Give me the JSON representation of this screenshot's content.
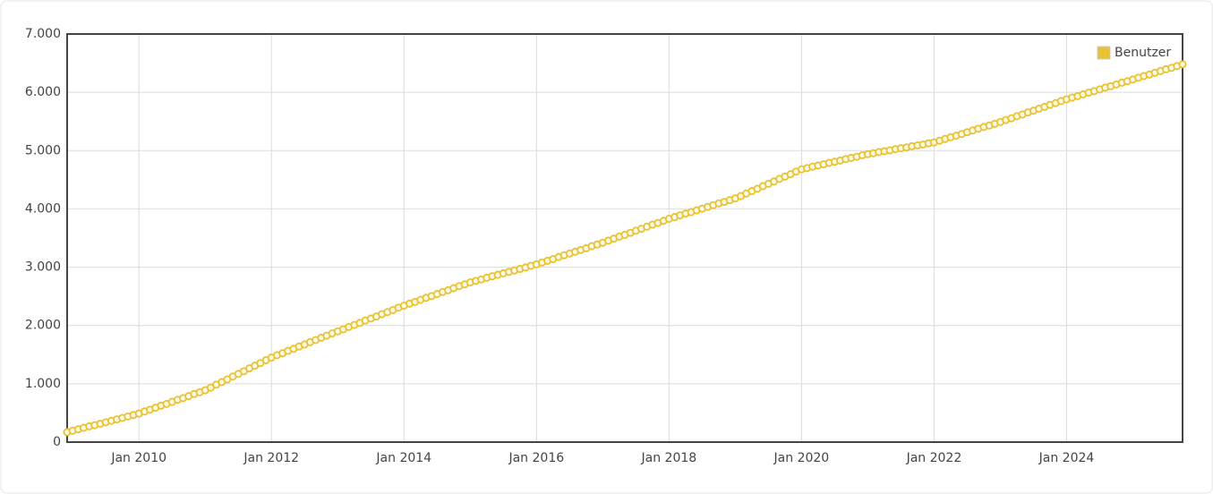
{
  "chart_data": {
    "type": "line",
    "x": [
      "2008-12",
      "2009-01",
      "2009-02",
      "2009-03",
      "2009-04",
      "2009-05",
      "2009-06",
      "2009-07",
      "2009-08",
      "2009-09",
      "2009-10",
      "2009-11",
      "2009-12",
      "2010-01",
      "2010-02",
      "2010-03",
      "2010-04",
      "2010-05",
      "2010-06",
      "2010-07",
      "2010-08",
      "2010-09",
      "2010-10",
      "2010-11",
      "2010-12",
      "2011-01",
      "2011-02",
      "2011-03",
      "2011-04",
      "2011-05",
      "2011-06",
      "2011-07",
      "2011-08",
      "2011-09",
      "2011-10",
      "2011-11",
      "2011-12",
      "2012-01",
      "2012-02",
      "2012-03",
      "2012-04",
      "2012-05",
      "2012-06",
      "2012-07",
      "2012-08",
      "2012-09",
      "2012-10",
      "2012-11",
      "2012-12",
      "2013-01",
      "2013-02",
      "2013-03",
      "2013-04",
      "2013-05",
      "2013-06",
      "2013-07",
      "2013-08",
      "2013-09",
      "2013-10",
      "2013-11",
      "2013-12",
      "2014-01",
      "2014-02",
      "2014-03",
      "2014-04",
      "2014-05",
      "2014-06",
      "2014-07",
      "2014-08",
      "2014-09",
      "2014-10",
      "2014-11",
      "2014-12",
      "2015-01",
      "2015-02",
      "2015-03",
      "2015-04",
      "2015-05",
      "2015-06",
      "2015-07",
      "2015-08",
      "2015-09",
      "2015-10",
      "2015-11",
      "2015-12",
      "2016-01",
      "2016-02",
      "2016-03",
      "2016-04",
      "2016-05",
      "2016-06",
      "2016-07",
      "2016-08",
      "2016-09",
      "2016-10",
      "2016-11",
      "2016-12",
      "2017-01",
      "2017-02",
      "2017-03",
      "2017-04",
      "2017-05",
      "2017-06",
      "2017-07",
      "2017-08",
      "2017-09",
      "2017-10",
      "2017-11",
      "2017-12",
      "2018-01",
      "2018-02",
      "2018-03",
      "2018-04",
      "2018-05",
      "2018-06",
      "2018-07",
      "2018-08",
      "2018-09",
      "2018-10",
      "2018-11",
      "2018-12",
      "2019-01",
      "2019-02",
      "2019-03",
      "2019-04",
      "2019-05",
      "2019-06",
      "2019-07",
      "2019-08",
      "2019-09",
      "2019-10",
      "2019-11",
      "2019-12",
      "2020-01",
      "2020-02",
      "2020-03",
      "2020-04",
      "2020-05",
      "2020-06",
      "2020-07",
      "2020-08",
      "2020-09",
      "2020-10",
      "2020-11",
      "2020-12",
      "2021-01",
      "2021-02",
      "2021-03",
      "2021-04",
      "2021-05",
      "2021-06",
      "2021-07",
      "2021-08",
      "2021-09",
      "2021-10",
      "2021-11",
      "2021-12",
      "2022-01",
      "2022-02",
      "2022-03",
      "2022-04",
      "2022-05",
      "2022-06",
      "2022-07",
      "2022-08",
      "2022-09",
      "2022-10",
      "2022-11",
      "2022-12",
      "2023-01",
      "2023-02",
      "2023-03",
      "2023-04",
      "2023-05",
      "2023-06",
      "2023-07",
      "2023-08",
      "2023-09",
      "2023-10",
      "2023-11",
      "2023-12",
      "2024-01",
      "2024-02",
      "2024-03",
      "2024-04",
      "2024-05",
      "2024-06",
      "2024-07",
      "2024-08",
      "2024-09",
      "2024-10",
      "2024-11",
      "2024-12",
      "2025-01",
      "2025-02",
      "2025-03",
      "2025-04",
      "2025-05",
      "2025-06",
      "2025-07",
      "2025-08",
      "2025-09",
      "2025-10"
    ],
    "series": [
      {
        "name": "Benutzer",
        "color": "#e8c232",
        "values": [
          170,
          195,
          220,
          245,
          270,
          290,
          315,
          340,
          365,
          390,
          415,
          440,
          465,
          490,
          525,
          555,
          590,
          625,
          655,
          690,
          725,
          755,
          790,
          825,
          855,
          890,
          935,
          985,
          1030,
          1075,
          1125,
          1170,
          1215,
          1265,
          1310,
          1355,
          1405,
          1450,
          1490,
          1525,
          1565,
          1600,
          1640,
          1675,
          1715,
          1750,
          1790,
          1825,
          1865,
          1900,
          1935,
          1975,
          2010,
          2045,
          2085,
          2120,
          2155,
          2195,
          2230,
          2265,
          2305,
          2340,
          2375,
          2405,
          2440,
          2475,
          2505,
          2540,
          2575,
          2605,
          2640,
          2675,
          2705,
          2740,
          2765,
          2790,
          2820,
          2845,
          2870,
          2895,
          2920,
          2945,
          2970,
          2995,
          3025,
          3050,
          3080,
          3110,
          3140,
          3175,
          3205,
          3235,
          3265,
          3295,
          3325,
          3360,
          3390,
          3420,
          3455,
          3490,
          3525,
          3555,
          3590,
          3625,
          3660,
          3695,
          3730,
          3760,
          3795,
          3830,
          3860,
          3890,
          3920,
          3945,
          3975,
          4005,
          4035,
          4065,
          4095,
          4120,
          4150,
          4180,
          4220,
          4265,
          4305,
          4345,
          4390,
          4430,
          4470,
          4515,
          4555,
          4595,
          4640,
          4680,
          4700,
          4725,
          4745,
          4765,
          4790,
          4810,
          4830,
          4855,
          4875,
          4895,
          4920,
          4940,
          4955,
          4975,
          4990,
          5005,
          5025,
          5040,
          5055,
          5075,
          5090,
          5105,
          5125,
          5140,
          5170,
          5200,
          5230,
          5255,
          5285,
          5315,
          5345,
          5375,
          5405,
          5430,
          5460,
          5490,
          5525,
          5555,
          5590,
          5620,
          5655,
          5685,
          5720,
          5750,
          5785,
          5815,
          5850,
          5880,
          5910,
          5935,
          5965,
          5995,
          6020,
          6050,
          6080,
          6105,
          6135,
          6165,
          6190,
          6220,
          6250,
          6280,
          6305,
          6335,
          6365,
          6395,
          6420,
          6450,
          6480
        ]
      }
    ],
    "xlim": [
      "2008-12",
      "2025-10"
    ],
    "xticks": [
      {
        "value": "2010-01",
        "label": "Jan 2010"
      },
      {
        "value": "2012-01",
        "label": "Jan 2012"
      },
      {
        "value": "2014-01",
        "label": "Jan 2014"
      },
      {
        "value": "2016-01",
        "label": "Jan 2016"
      },
      {
        "value": "2018-01",
        "label": "Jan 2018"
      },
      {
        "value": "2020-01",
        "label": "Jan 2020"
      },
      {
        "value": "2022-01",
        "label": "Jan 2022"
      },
      {
        "value": "2024-01",
        "label": "Jan 2024"
      }
    ],
    "ylim": [
      0,
      7000
    ],
    "yticks": [
      0,
      {
        "value": 1000,
        "label": "1.000"
      },
      {
        "value": 2000,
        "label": "2.000"
      },
      {
        "value": 3000,
        "label": "3.000"
      },
      {
        "value": 4000,
        "label": "4.000"
      },
      {
        "value": 5000,
        "label": "5.000"
      },
      {
        "value": 6000,
        "label": "6.000"
      },
      {
        "value": 7000,
        "label": "7.000"
      }
    ],
    "grid": true,
    "legend": "top-right"
  }
}
